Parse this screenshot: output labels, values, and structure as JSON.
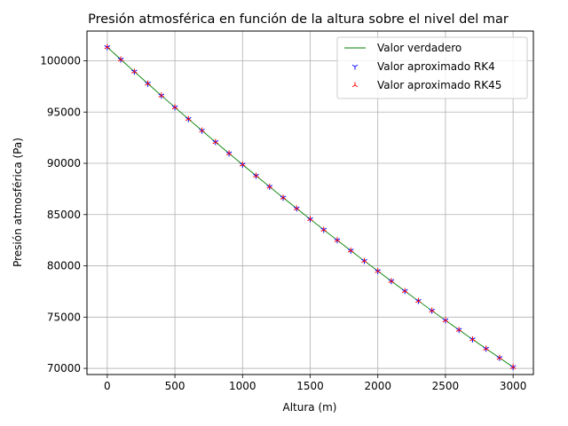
{
  "chart_data": {
    "type": "line",
    "title": "Presión atmosférica en función de la altura sobre el nivel del mar",
    "xlabel": "Altura (m)",
    "ylabel": "Presión atmosférica (Pa)",
    "xlim": [
      -150,
      3150
    ],
    "ylim": [
      69400,
      102900
    ],
    "xticks": [
      0,
      500,
      1000,
      1500,
      2000,
      2500,
      3000
    ],
    "yticks": [
      70000,
      75000,
      80000,
      85000,
      90000,
      95000,
      100000
    ],
    "grid": true,
    "legend_position": "top-right",
    "x": [
      0,
      100,
      200,
      300,
      400,
      500,
      600,
      700,
      800,
      900,
      1000,
      1100,
      1200,
      1300,
      1400,
      1500,
      1600,
      1700,
      1800,
      1900,
      2000,
      2100,
      2200,
      2300,
      2400,
      2500,
      2600,
      2700,
      2800,
      2900,
      3000
    ],
    "series": [
      {
        "name": "Valor verdadero",
        "style": "line",
        "color": "#008000",
        "values": [
          101325,
          100129,
          98945,
          97773,
          96611,
          95461,
          94322,
          93194,
          92076,
          90970,
          89874,
          88789,
          87715,
          86651,
          85597,
          84555,
          83522,
          82499,
          81487,
          80485,
          79494,
          78512,
          77541,
          76579,
          75628,
          74686,
          73754,
          72832,
          71920,
          71018,
          70124
        ]
      },
      {
        "name": "Valor aproximado RK4",
        "style": "marker-tri-down",
        "color": "#0000ff",
        "values": [
          101325,
          100129,
          98945,
          97773,
          96611,
          95461,
          94322,
          93194,
          92076,
          90970,
          89874,
          88789,
          87715,
          86651,
          85597,
          84555,
          83522,
          82499,
          81487,
          80485,
          79494,
          78512,
          77541,
          76579,
          75628,
          74686,
          73754,
          72832,
          71920,
          71018,
          70124
        ]
      },
      {
        "name": "Valor aproximado RK45",
        "style": "marker-tri-up",
        "color": "#ff0000",
        "values": [
          101325,
          100129,
          98945,
          97773,
          96611,
          95461,
          94322,
          93194,
          92076,
          90970,
          89874,
          88789,
          87715,
          86651,
          85597,
          84555,
          83522,
          82499,
          81487,
          80485,
          79494,
          78512,
          77541,
          76579,
          75628,
          74686,
          73754,
          72832,
          71920,
          71018,
          70124
        ]
      }
    ]
  }
}
